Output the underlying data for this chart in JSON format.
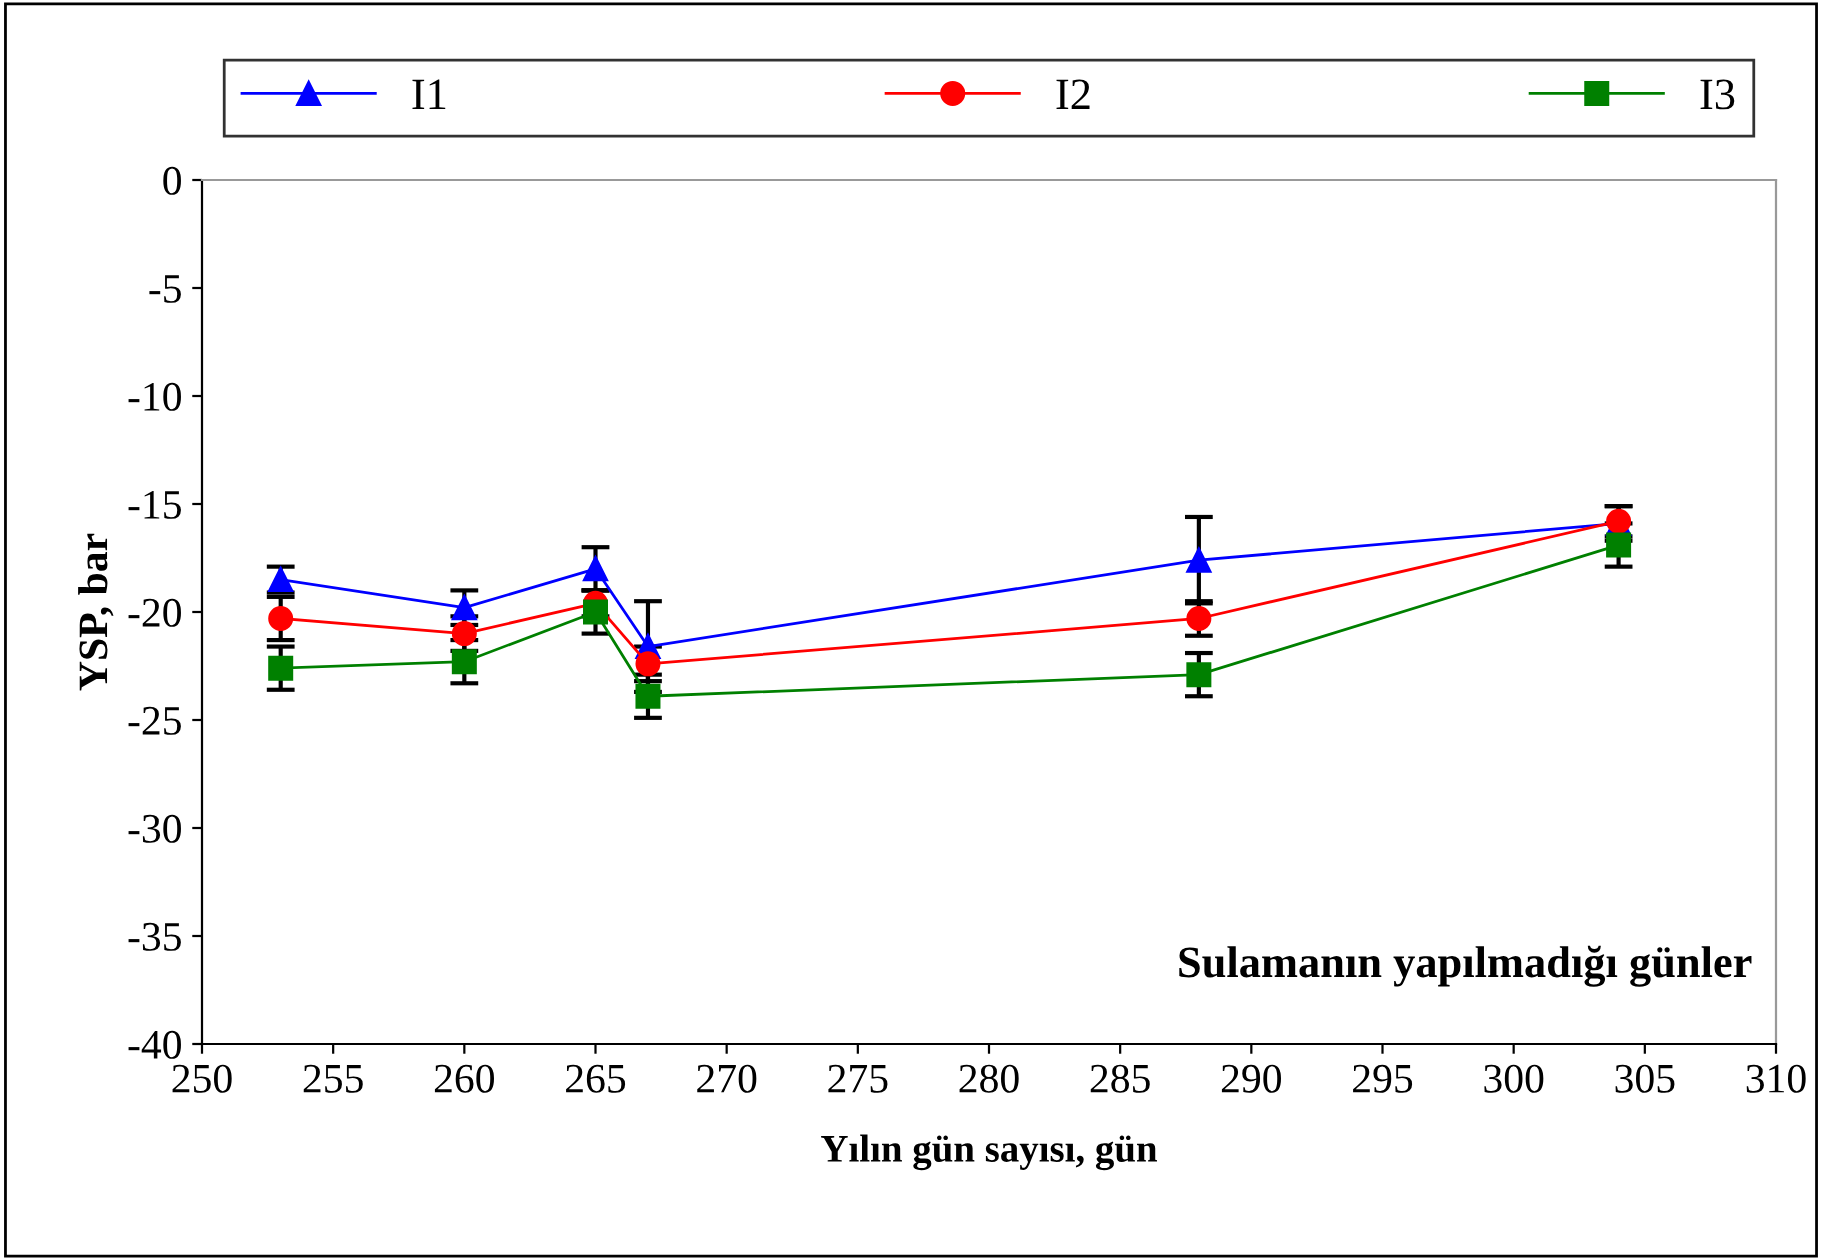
{
  "chart_data": {
    "type": "line",
    "xlabel": "Yılın gün sayısı, gün",
    "ylabel": "YSP, bar",
    "x": [
      253,
      260,
      265,
      267,
      288,
      304
    ],
    "series": [
      {
        "name": "I1",
        "color": "#0000ff",
        "marker": "triangle",
        "values": [
          -18.5,
          -19.8,
          -18.0,
          -21.6,
          -17.6,
          -15.9
        ],
        "errors": [
          0.6,
          0.8,
          1.0,
          2.1,
          2.0,
          0.8
        ]
      },
      {
        "name": "I2",
        "color": "#ff0000",
        "marker": "circle",
        "values": [
          -20.3,
          -21.0,
          -19.6,
          -22.4,
          -20.3,
          -15.8
        ],
        "errors": [
          1.0,
          0.8,
          0.6,
          0.8,
          0.8,
          0.7
        ]
      },
      {
        "name": "I3",
        "color": "#008000",
        "marker": "square",
        "values": [
          -22.6,
          -22.3,
          -20.0,
          -23.9,
          -22.9,
          -16.9
        ],
        "errors": [
          1.0,
          1.0,
          1.0,
          1.0,
          1.0,
          1.0
        ]
      }
    ],
    "xlim": [
      250,
      310
    ],
    "xticks": [
      250,
      255,
      260,
      265,
      270,
      275,
      280,
      285,
      290,
      295,
      300,
      305,
      310
    ],
    "ylim": [
      -40,
      0
    ],
    "yticks": [
      -40,
      -35,
      -30,
      -25,
      -20,
      -15,
      -10,
      -5,
      0
    ],
    "annotations": [
      "Sulamanın yapılmadığı günler"
    ],
    "legend": "top",
    "grid": false
  }
}
